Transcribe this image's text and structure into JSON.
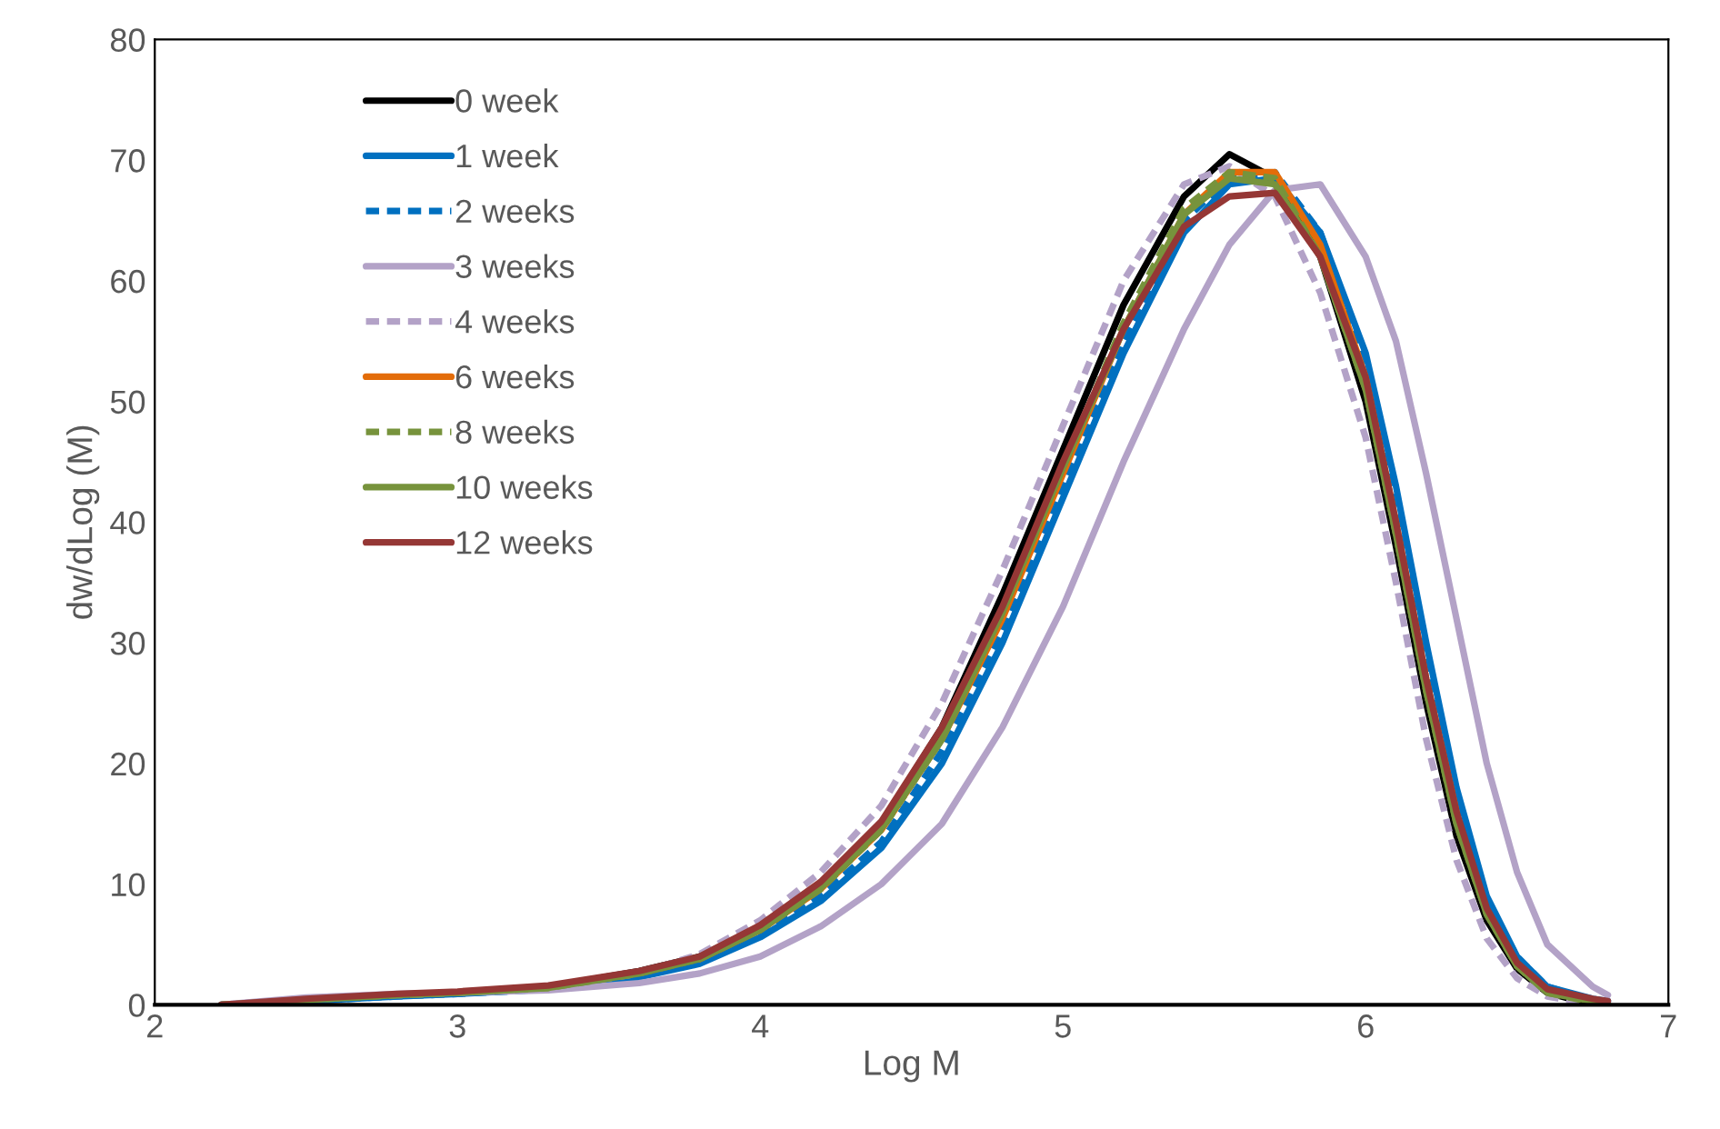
{
  "chart_data": {
    "type": "line",
    "xlabel": "Log M",
    "ylabel": "dw/dLog (M)",
    "xlim": [
      2,
      7
    ],
    "xticks": [
      2,
      3,
      4,
      5,
      6,
      7
    ],
    "ylim": [
      0,
      80
    ],
    "yticks": [
      0,
      10,
      20,
      30,
      40,
      50,
      60,
      70,
      80
    ],
    "grid": false,
    "legend": "top left",
    "marker": "none",
    "x": [
      2.22,
      2.5,
      2.8,
      3.0,
      3.3,
      3.6,
      3.8,
      4.0,
      4.2,
      4.4,
      4.6,
      4.8,
      5.0,
      5.2,
      5.4,
      5.55,
      5.7,
      5.85,
      6.0,
      6.1,
      6.2,
      6.3,
      6.4,
      6.5,
      6.6,
      6.75,
      6.8
    ],
    "series": [
      {
        "name": "0 week",
        "color": "#000000",
        "line_style": "solid",
        "values": [
          0,
          0.4,
          0.8,
          1.0,
          1.5,
          2.8,
          4.0,
          6.5,
          10,
          15,
          23,
          34,
          46,
          58,
          67,
          70.5,
          68.5,
          62,
          50,
          38,
          25,
          14,
          7,
          3,
          1,
          0,
          0
        ]
      },
      {
        "name": "1 week",
        "color": "#0070c0",
        "line_style": "solid",
        "values": [
          0,
          0.3,
          0.7,
          0.9,
          1.3,
          2.3,
          3.4,
          5.6,
          8.6,
          13,
          20,
          30,
          42,
          54,
          64,
          68,
          68.5,
          64,
          54,
          43,
          30,
          18,
          9,
          4,
          1.5,
          0.5,
          0.3
        ]
      },
      {
        "name": "2 weeks",
        "color": "#0070c0",
        "line_style": "dashed",
        "values": [
          0,
          0.3,
          0.7,
          0.9,
          1.3,
          2.4,
          3.5,
          5.8,
          9,
          13.5,
          21,
          31,
          43,
          55,
          65,
          68.5,
          69,
          64,
          53,
          41,
          28,
          17,
          8.5,
          4,
          1.5,
          0.4,
          null
        ]
      },
      {
        "name": "3 weeks",
        "color": "#b3a2c7",
        "line_style": "solid",
        "values": [
          0,
          0.6,
          0.9,
          1.0,
          1.2,
          1.8,
          2.6,
          4.0,
          6.5,
          10,
          15,
          23,
          33,
          45,
          56,
          63,
          67.5,
          68,
          62,
          55,
          44,
          32,
          20,
          11,
          5,
          1.5,
          0.8
        ]
      },
      {
        "name": "4 weeks",
        "color": "#b3a2c7",
        "line_style": "dashed",
        "values": [
          0,
          0.5,
          0.8,
          1.0,
          1.4,
          2.6,
          4.2,
          7,
          11,
          16.5,
          25,
          36,
          48,
          60,
          68,
          69.5,
          67,
          59,
          47,
          35,
          22,
          12,
          5.5,
          2.2,
          0.7,
          0,
          0
        ]
      },
      {
        "name": "6 weeks",
        "color": "#e36c09",
        "line_style": "solid",
        "values": [
          null,
          null,
          null,
          null,
          null,
          null,
          3.8,
          6.2,
          9.6,
          14.5,
          22,
          32,
          44,
          56,
          65.5,
          69,
          69,
          63,
          52,
          40,
          27,
          16,
          null,
          null,
          null,
          null,
          null
        ]
      },
      {
        "name": "8 weeks",
        "color": "#77933c",
        "line_style": "dashed",
        "values": [
          0,
          0.4,
          0.8,
          1.0,
          1.4,
          2.6,
          3.8,
          6.2,
          9.6,
          14.5,
          22,
          32.5,
          44.5,
          56.5,
          66,
          69,
          68.5,
          62,
          51,
          39,
          26,
          15,
          7.5,
          3.2,
          1,
          0.2,
          null
        ]
      },
      {
        "name": "10 weeks",
        "color": "#77933c",
        "line_style": "solid",
        "values": [
          0,
          0.4,
          0.8,
          1.0,
          1.4,
          2.6,
          3.8,
          6.2,
          9.7,
          14.6,
          22,
          32.5,
          44.5,
          56,
          65.5,
          68.5,
          68,
          62,
          51,
          39,
          26,
          15,
          7.5,
          3.2,
          1,
          0.3,
          0.1
        ]
      },
      {
        "name": "12 weeks",
        "color": "#953735",
        "line_style": "solid",
        "values": [
          0,
          0.5,
          0.9,
          1.1,
          1.6,
          2.8,
          4.0,
          6.6,
          10.2,
          15.2,
          23,
          33,
          45,
          56,
          64.5,
          67,
          67.3,
          62,
          52,
          40,
          27,
          16,
          8,
          3.5,
          1.3,
          0.5,
          0.3
        ]
      }
    ]
  }
}
